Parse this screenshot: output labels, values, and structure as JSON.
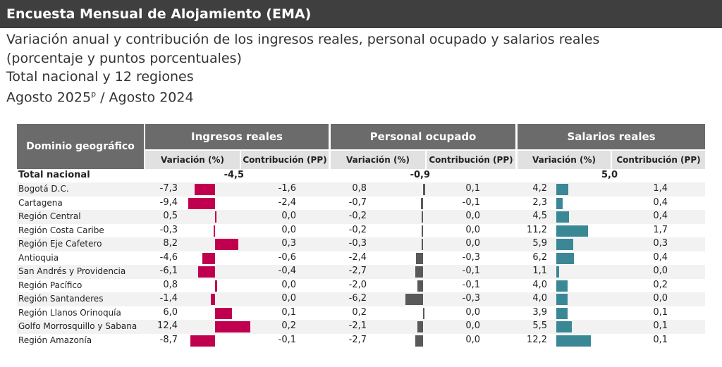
{
  "header": {
    "title": "Encuesta Mensual de Alojamiento (EMA)",
    "subtitle_line1": "Variación anual y contribución de los ingresos reales, personal ocupado y salarios reales",
    "subtitle_line2": "(porcentaje y puntos porcentuales)",
    "subtitle_line3": "Total nacional y 12 regiones",
    "subtitle_line4_pre": "Agosto 2025",
    "subtitle_line4_sup": "p",
    "subtitle_line4_post": " / Agosto 2024"
  },
  "colors": {
    "ingresos": "#c0004f",
    "personal": "#595959",
    "salarios": "#3a8896"
  },
  "chart_data": {
    "type": "table",
    "row_header": "Dominio geográfico",
    "groups": [
      "Ingresos reales",
      "Personal ocupado",
      "Salarios reales"
    ],
    "subheaders": {
      "variacion": "Variación (%)",
      "contribucion": "Contribución (PP)"
    },
    "total": {
      "label": "Total nacional",
      "ingresos": "-4,5",
      "personal": "-0,9",
      "salarios": "5,0"
    },
    "rows": [
      {
        "label": "Bogotá D.C.",
        "ing_var": -7.3,
        "ing_var_txt": "-7,3",
        "ing_con": "-1,6",
        "per_var": 0.8,
        "per_var_txt": "0,8",
        "per_con": "0,1",
        "sal_var": 4.2,
        "sal_var_txt": "4,2",
        "sal_con": "1,4"
      },
      {
        "label": "Cartagena",
        "ing_var": -9.4,
        "ing_var_txt": "-9,4",
        "ing_con": "-2,4",
        "per_var": -0.7,
        "per_var_txt": "-0,7",
        "per_con": "-0,1",
        "sal_var": 2.3,
        "sal_var_txt": "2,3",
        "sal_con": "0,4"
      },
      {
        "label": "Región Central",
        "ing_var": 0.5,
        "ing_var_txt": "0,5",
        "ing_con": "0,0",
        "per_var": -0.2,
        "per_var_txt": "-0,2",
        "per_con": "0,0",
        "sal_var": 4.5,
        "sal_var_txt": "4,5",
        "sal_con": "0,4"
      },
      {
        "label": "Región Costa Caribe",
        "ing_var": -0.3,
        "ing_var_txt": "-0,3",
        "ing_con": "0,0",
        "per_var": -0.2,
        "per_var_txt": "-0,2",
        "per_con": "0,0",
        "sal_var": 11.2,
        "sal_var_txt": "11,2",
        "sal_con": "1,7"
      },
      {
        "label": "Región Eje Cafetero",
        "ing_var": 8.2,
        "ing_var_txt": "8,2",
        "ing_con": "0,3",
        "per_var": -0.3,
        "per_var_txt": "-0,3",
        "per_con": "0,0",
        "sal_var": 5.9,
        "sal_var_txt": "5,9",
        "sal_con": "0,3"
      },
      {
        "label": "Antioquia",
        "ing_var": -4.6,
        "ing_var_txt": "-4,6",
        "ing_con": "-0,6",
        "per_var": -2.4,
        "per_var_txt": "-2,4",
        "per_con": "-0,3",
        "sal_var": 6.2,
        "sal_var_txt": "6,2",
        "sal_con": "0,4"
      },
      {
        "label": "San Andrés y Providencia",
        "ing_var": -6.1,
        "ing_var_txt": "-6,1",
        "ing_con": "-0,4",
        "per_var": -2.7,
        "per_var_txt": "-2,7",
        "per_con": "-0,1",
        "sal_var": 1.1,
        "sal_var_txt": "1,1",
        "sal_con": "0,0"
      },
      {
        "label": "Región Pacífico",
        "ing_var": 0.8,
        "ing_var_txt": "0,8",
        "ing_con": "0,0",
        "per_var": -2.0,
        "per_var_txt": "-2,0",
        "per_con": "-0,1",
        "sal_var": 4.0,
        "sal_var_txt": "4,0",
        "sal_con": "0,2"
      },
      {
        "label": "Región Santanderes",
        "ing_var": -1.4,
        "ing_var_txt": "-1,4",
        "ing_con": "0,0",
        "per_var": -6.2,
        "per_var_txt": "-6,2",
        "per_con": "-0,3",
        "sal_var": 4.0,
        "sal_var_txt": "4,0",
        "sal_con": "0,0"
      },
      {
        "label": "Región Llanos Orinoquía",
        "ing_var": 6.0,
        "ing_var_txt": "6,0",
        "ing_con": "0,1",
        "per_var": 0.2,
        "per_var_txt": "0,2",
        "per_con": "0,0",
        "sal_var": 3.9,
        "sal_var_txt": "3,9",
        "sal_con": "0,1"
      },
      {
        "label": "Golfo Morrosquillo y Sabana",
        "ing_var": 12.4,
        "ing_var_txt": "12,4",
        "ing_con": "0,2",
        "per_var": -2.1,
        "per_var_txt": "-2,1",
        "per_con": "0,0",
        "sal_var": 5.5,
        "sal_var_txt": "5,5",
        "sal_con": "0,1"
      },
      {
        "label": "Región Amazonía",
        "ing_var": -8.7,
        "ing_var_txt": "-8,7",
        "ing_con": "-0,1",
        "per_var": -2.7,
        "per_var_txt": "-2,7",
        "per_con": "0,0",
        "sal_var": 12.2,
        "sal_var_txt": "12,2",
        "sal_con": "0,1"
      }
    ]
  }
}
